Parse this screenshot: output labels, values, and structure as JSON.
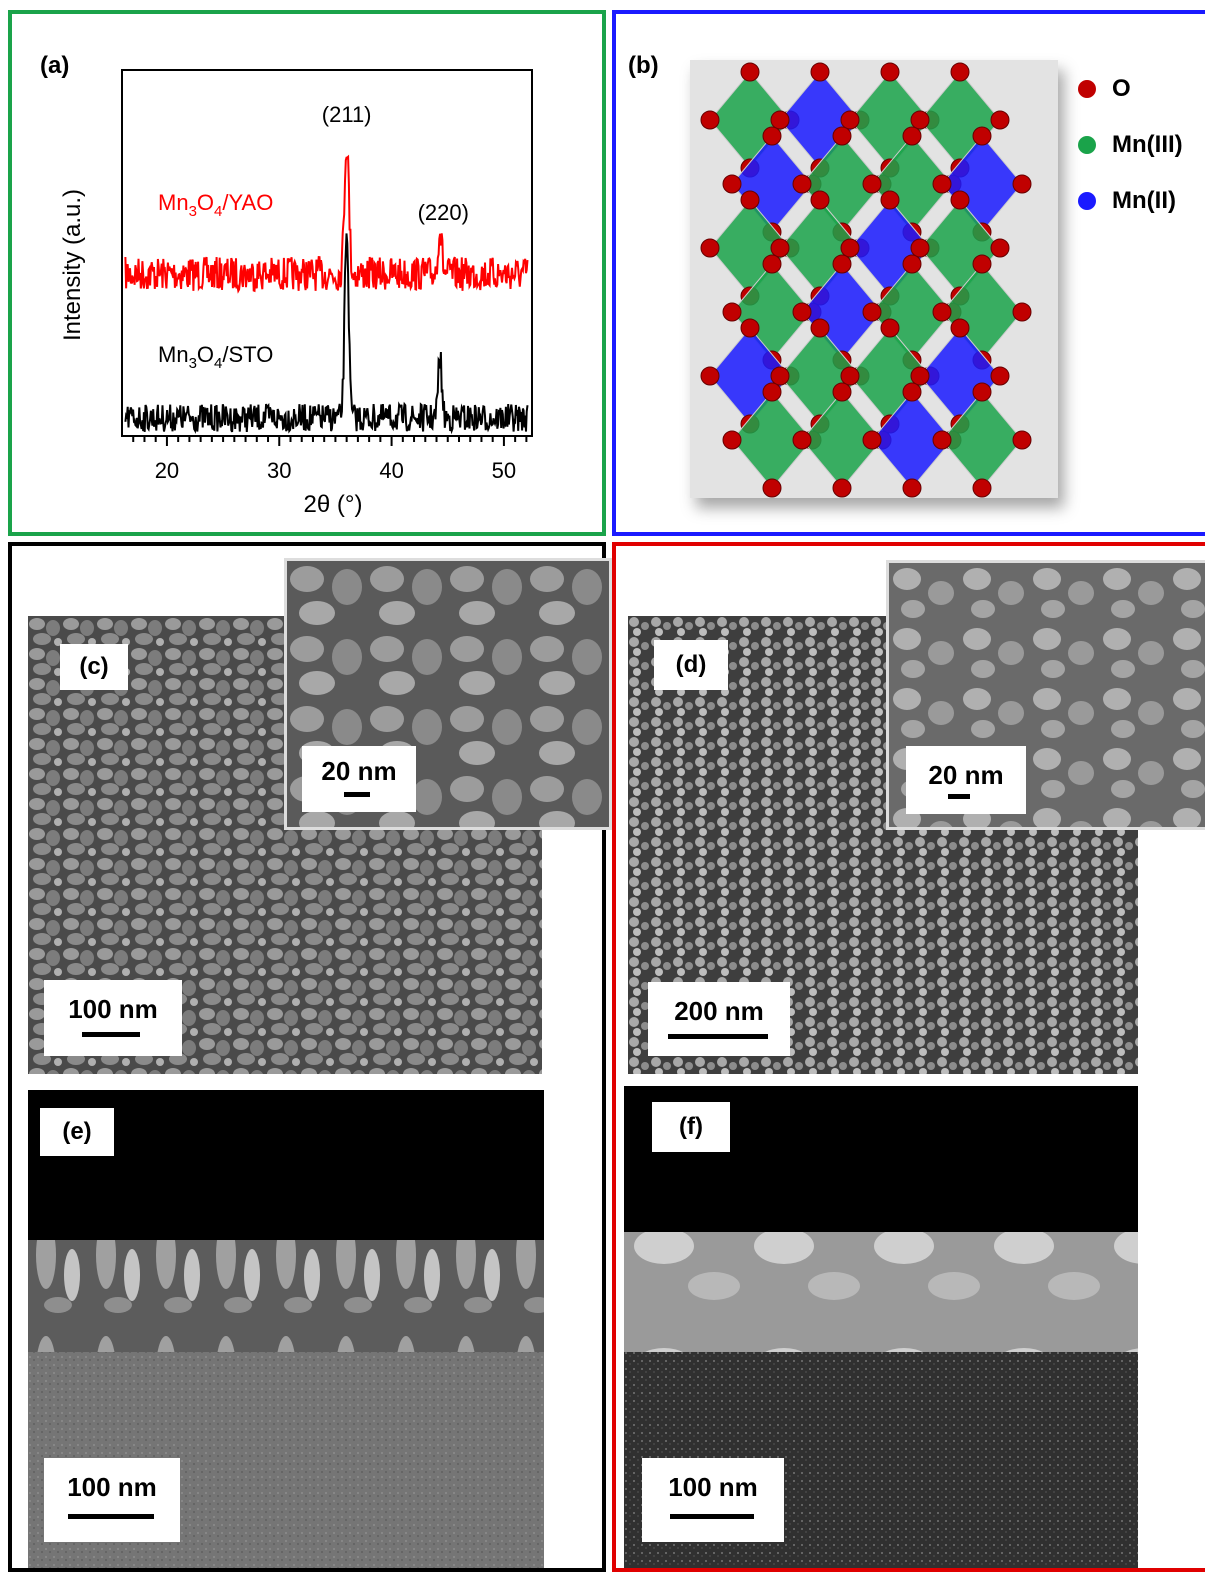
{
  "panels": {
    "a": {
      "label": "(a)",
      "peak_211": "(211)",
      "peak_220": "(220)",
      "series_yao": {
        "base": "Mn",
        "sub1": "3",
        "mid": "O",
        "sub2": "4",
        "tail": "/YAO",
        "color": "#ff0000"
      },
      "series_sto": {
        "base": "Mn",
        "sub1": "3",
        "mid": "O",
        "sub2": "4",
        "tail": "/STO",
        "color": "#000000"
      }
    },
    "b": {
      "label": "(b)",
      "legend": [
        {
          "name": "O",
          "color": "#c00000"
        },
        {
          "name": "Mn(III)",
          "color": "#1aa34a"
        },
        {
          "name": "Mn(II)",
          "color": "#1a1aff"
        }
      ]
    },
    "c": {
      "label": "(c)",
      "scale": "100 nm",
      "inset_scale": "20 nm"
    },
    "d": {
      "label": "(d)",
      "scale": "200 nm",
      "inset_scale": "20 nm"
    },
    "e": {
      "label": "(e)",
      "scale": "100 nm"
    },
    "f": {
      "label": "(f)",
      "scale": "100 nm"
    }
  },
  "chart_data": {
    "type": "line",
    "xlabel": "2θ (°)",
    "ylabel": "Intensity (a.u.)",
    "xlim": [
      16,
      52.5
    ],
    "xticks": [
      20,
      30,
      40,
      50
    ],
    "series": [
      {
        "name": "Mn3O4/YAO",
        "peaks": [
          {
            "x": 36.0,
            "label": "(211)"
          },
          {
            "x": 44.3,
            "label": "(220)"
          }
        ]
      },
      {
        "name": "Mn3O4/STO",
        "peaks": [
          {
            "x": 36.0
          },
          {
            "x": 44.3
          }
        ]
      }
    ]
  }
}
